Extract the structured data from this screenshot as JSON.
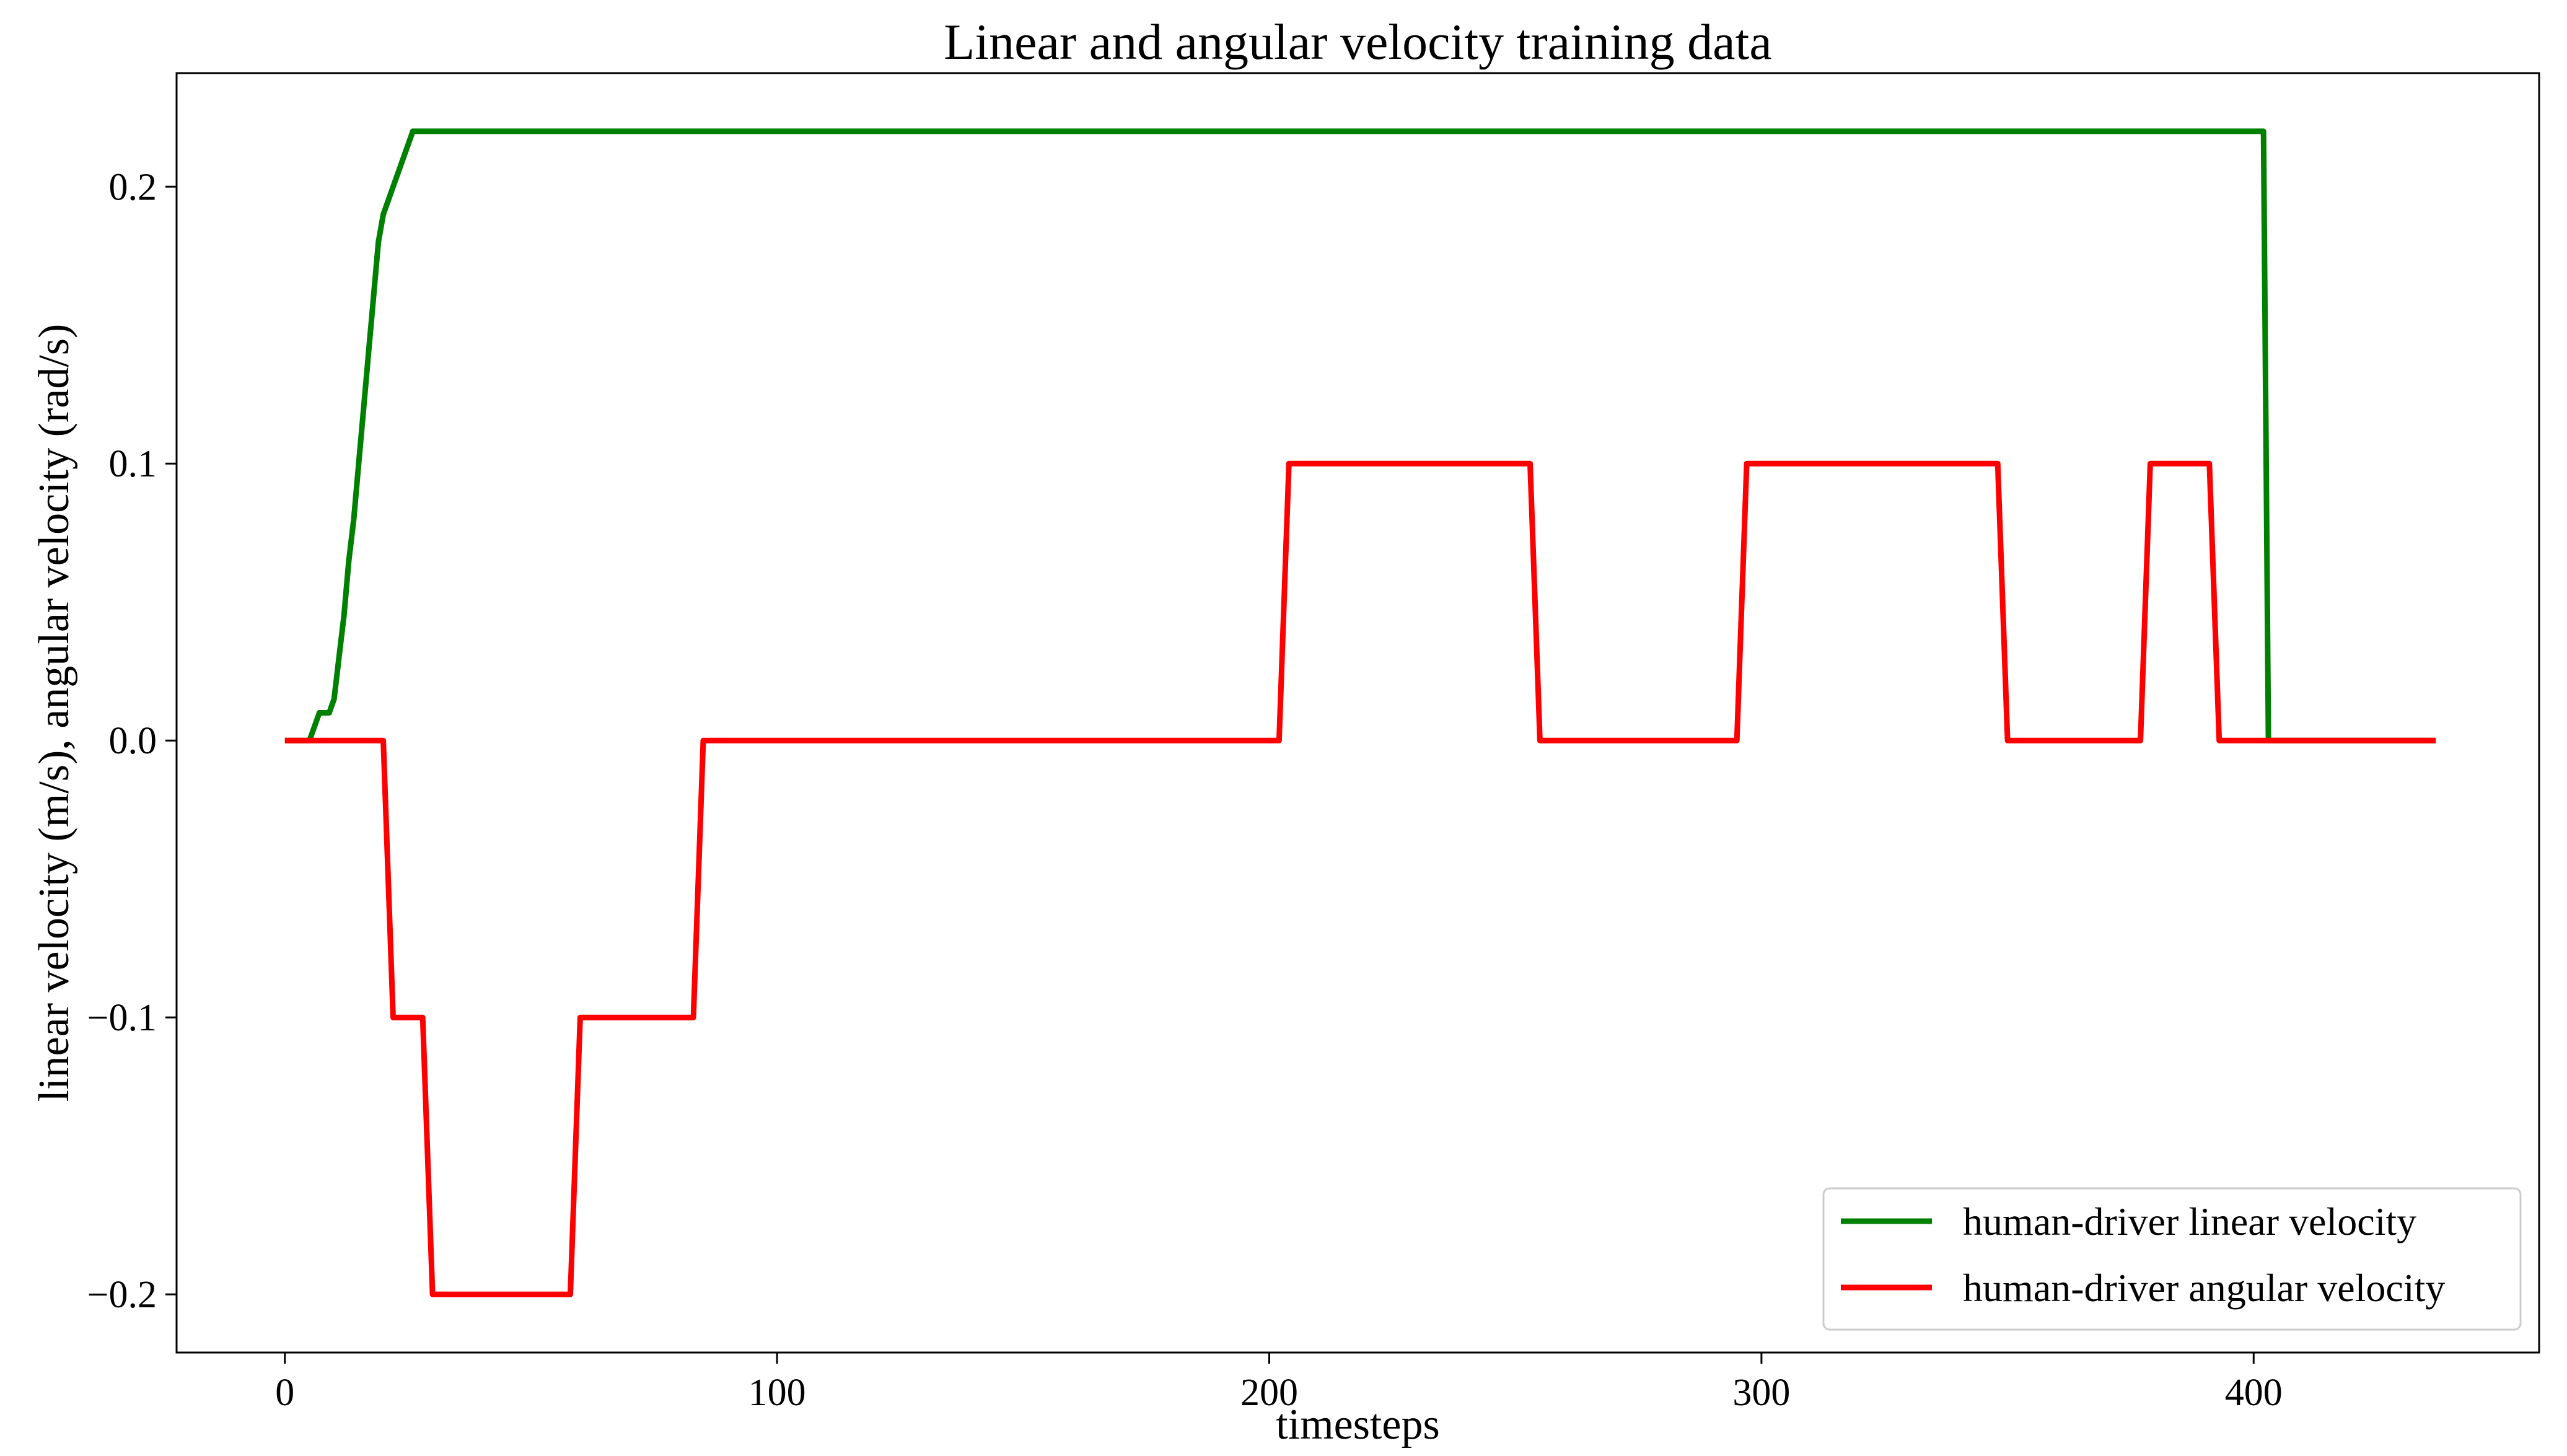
{
  "chart_data": {
    "type": "line",
    "title": "Linear and angular velocity training data",
    "xlabel": "timesteps",
    "ylabel": "linear velocity (m/s), angular velocity (rad/s)",
    "xlim": [
      -22,
      458
    ],
    "ylim": [
      -0.221,
      0.241
    ],
    "xticks": [
      0,
      100,
      200,
      300,
      400
    ],
    "xtick_labels": [
      "0",
      "100",
      "200",
      "300",
      "400"
    ],
    "yticks": [
      -0.2,
      -0.1,
      0.0,
      0.1,
      0.2
    ],
    "ytick_labels": [
      "−0.2",
      "−0.1",
      "0.0",
      "0.1",
      "0.2"
    ],
    "grid": false,
    "legend_position": "bottom-right",
    "series": [
      {
        "name": "human-driver linear velocity",
        "color": "#008000",
        "x": [
          0,
          5,
          7,
          9,
          10,
          11,
          12,
          13,
          14,
          15,
          16,
          17,
          18,
          19,
          20,
          21,
          22,
          23,
          24,
          25,
          26,
          27,
          28,
          400,
          402,
          403,
          405,
          437
        ],
        "y": [
          0,
          0,
          0.01,
          0.01,
          0.015,
          0.03,
          0.045,
          0.065,
          0.08,
          0.1,
          0.12,
          0.14,
          0.16,
          0.18,
          0.19,
          0.195,
          0.2,
          0.205,
          0.21,
          0.215,
          0.22,
          0.22,
          0.22,
          0.22,
          0.22,
          0.0,
          0.0,
          0.0
        ]
      },
      {
        "name": "human-driver angular velocity",
        "color": "#ff0000",
        "x": [
          0,
          20,
          22,
          28,
          30,
          58,
          60,
          83,
          85,
          202,
          204,
          253,
          255,
          295,
          297,
          348,
          350,
          377,
          379,
          391,
          393,
          437
        ],
        "y": [
          0,
          0,
          -0.1,
          -0.1,
          -0.2,
          -0.2,
          -0.1,
          -0.1,
          0,
          0,
          0.1,
          0.1,
          0,
          0,
          0.1,
          0.1,
          0,
          0,
          0.1,
          0.1,
          0,
          0
        ]
      }
    ]
  }
}
